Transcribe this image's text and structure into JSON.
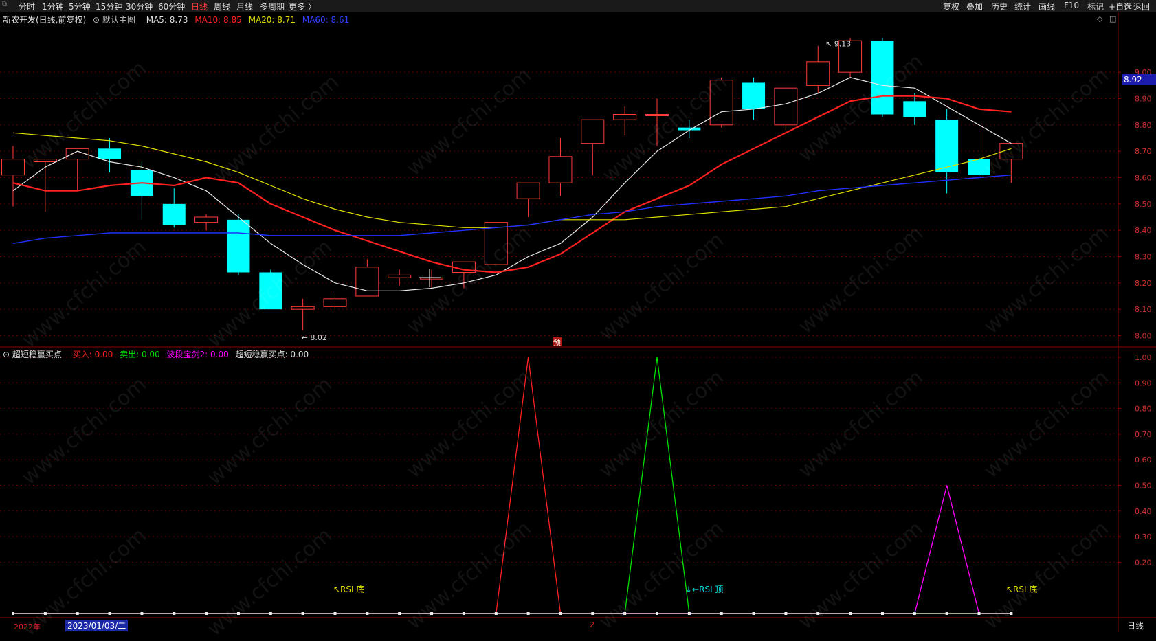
{
  "toolbar": {
    "left": [
      "分时",
      "1分钟",
      "5分钟",
      "15分钟",
      "30分钟",
      "60分钟",
      "日线",
      "周线",
      "月线",
      "多周期",
      "更多 〉"
    ],
    "active": "日线",
    "right": [
      "复权",
      "叠加",
      "历史",
      "统计",
      "画线",
      "F10",
      "标记",
      "+自选",
      "返回"
    ]
  },
  "main_legend": {
    "title": "新农开发(日线,前复权)",
    "template": "默认主图",
    "ma5": "MA5: 8.73",
    "ma10": "MA10: 8.85",
    "ma20": "MA20: 8.71",
    "ma60": "MA60: 8.61"
  },
  "sub_legend": {
    "name": "超短稳赢买点",
    "buy": "买入: 0.00",
    "sell": "卖出: 0.00",
    "wave": "波段宝剑2: 0.00",
    "point": "超短稳赢买点: 0.00"
  },
  "annotations": {
    "high": "9.13",
    "low": "8.02",
    "pre_marker": "预",
    "rsi_bottom_1": "↖RSI 底",
    "rsi_top": "↓←RSI 顶",
    "rsi_bottom_2": "↖RSI 底"
  },
  "current_price": "8.92",
  "bottom": {
    "year": "2022年",
    "date": "2023/01/03/二",
    "tick": "2",
    "period": "日线"
  },
  "watermark": "www.cfchi.com",
  "colors": {
    "up": "#ff3b3b",
    "down": "#00ffff",
    "ma5": "#e8e8e8",
    "ma10": "#ff2020",
    "ma20": "#e0e000",
    "ma60": "#2030ff",
    "buy": "#ff2020",
    "sell": "#00e000",
    "wave": "#ff00ff"
  },
  "chart_data": [
    {
      "type": "candlestick",
      "title": "新农开发(日线,前复权)",
      "ylim": [
        7.97,
        9.17
      ],
      "yticks": [
        "9.00",
        "8.90",
        "8.80",
        "8.70",
        "8.60",
        "8.50",
        "8.40",
        "8.30",
        "8.20",
        "8.10",
        "8.00"
      ],
      "candles": [
        {
          "o": 8.61,
          "h": 8.72,
          "l": 8.49,
          "c": 8.67
        },
        {
          "o": 8.66,
          "h": 8.67,
          "l": 8.47,
          "c": 8.67
        },
        {
          "o": 8.67,
          "h": 8.71,
          "l": 8.55,
          "c": 8.71
        },
        {
          "o": 8.71,
          "h": 8.75,
          "l": 8.62,
          "c": 8.67
        },
        {
          "o": 8.63,
          "h": 8.66,
          "l": 8.44,
          "c": 8.53
        },
        {
          "o": 8.5,
          "h": 8.56,
          "l": 8.41,
          "c": 8.42
        },
        {
          "o": 8.43,
          "h": 8.46,
          "l": 8.4,
          "c": 8.45
        },
        {
          "o": 8.44,
          "h": 8.46,
          "l": 8.23,
          "c": 8.24
        },
        {
          "o": 8.24,
          "h": 8.25,
          "l": 8.1,
          "c": 8.1
        },
        {
          "o": 8.1,
          "h": 8.14,
          "l": 8.02,
          "c": 8.11
        },
        {
          "o": 8.11,
          "h": 8.16,
          "l": 8.09,
          "c": 8.14
        },
        {
          "o": 8.15,
          "h": 8.29,
          "l": 8.15,
          "c": 8.26
        },
        {
          "o": 8.22,
          "h": 8.25,
          "l": 8.19,
          "c": 8.23
        },
        {
          "o": 8.22,
          "h": 8.25,
          "l": 8.18,
          "c": 8.22
        },
        {
          "o": 8.24,
          "h": 8.28,
          "l": 8.18,
          "c": 8.28
        },
        {
          "o": 8.27,
          "h": 8.43,
          "l": 8.27,
          "c": 8.43
        },
        {
          "o": 8.52,
          "h": 8.58,
          "l": 8.45,
          "c": 8.58
        },
        {
          "o": 8.58,
          "h": 8.75,
          "l": 8.53,
          "c": 8.68
        },
        {
          "o": 8.73,
          "h": 8.82,
          "l": 8.61,
          "c": 8.82
        },
        {
          "o": 8.82,
          "h": 8.87,
          "l": 8.76,
          "c": 8.84
        },
        {
          "o": 8.84,
          "h": 8.9,
          "l": 8.72,
          "c": 8.84
        },
        {
          "o": 8.79,
          "h": 8.82,
          "l": 8.75,
          "c": 8.78
        },
        {
          "o": 8.8,
          "h": 8.98,
          "l": 8.79,
          "c": 8.97
        },
        {
          "o": 8.96,
          "h": 8.98,
          "l": 8.82,
          "c": 8.86
        },
        {
          "o": 8.8,
          "h": 8.94,
          "l": 8.78,
          "c": 8.94
        },
        {
          "o": 8.95,
          "h": 9.1,
          "l": 8.92,
          "c": 9.04
        },
        {
          "o": 9.0,
          "h": 9.13,
          "l": 8.98,
          "c": 9.12
        },
        {
          "o": 9.12,
          "h": 9.13,
          "l": 8.83,
          "c": 8.84
        },
        {
          "o": 8.89,
          "h": 8.92,
          "l": 8.8,
          "c": 8.83
        },
        {
          "o": 8.82,
          "h": 8.86,
          "l": 8.54,
          "c": 8.62
        },
        {
          "o": 8.67,
          "h": 8.78,
          "l": 8.6,
          "c": 8.61
        },
        {
          "o": 8.67,
          "h": 8.73,
          "l": 8.58,
          "c": 8.73
        }
      ],
      "series": [
        {
          "name": "MA5",
          "values": [
            8.55,
            8.64,
            8.7,
            8.66,
            8.64,
            8.6,
            8.55,
            8.45,
            8.35,
            8.27,
            8.2,
            8.17,
            8.17,
            8.18,
            8.2,
            8.23,
            8.3,
            8.35,
            8.45,
            8.58,
            8.7,
            8.78,
            8.85,
            8.86,
            8.88,
            8.92,
            8.98,
            8.95,
            8.94,
            8.87,
            8.8,
            8.73
          ]
        },
        {
          "name": "MA10",
          "values": [
            8.58,
            8.55,
            8.55,
            8.57,
            8.58,
            8.57,
            8.6,
            8.58,
            8.5,
            8.45,
            8.4,
            8.36,
            8.32,
            8.28,
            8.25,
            8.24,
            8.26,
            8.31,
            8.39,
            8.47,
            8.52,
            8.57,
            8.65,
            8.71,
            8.77,
            8.83,
            8.89,
            8.91,
            8.91,
            8.9,
            8.86,
            8.85
          ]
        },
        {
          "name": "MA20",
          "values": [
            8.77,
            8.76,
            8.75,
            8.74,
            8.72,
            8.69,
            8.66,
            8.62,
            8.57,
            8.52,
            8.48,
            8.45,
            8.43,
            8.42,
            8.41,
            8.41,
            8.42,
            8.44,
            8.44,
            8.44,
            8.45,
            8.46,
            8.47,
            8.48,
            8.49,
            8.52,
            8.55,
            8.58,
            8.61,
            8.64,
            8.67,
            8.71
          ]
        },
        {
          "name": "MA60",
          "values": [
            8.35,
            8.37,
            8.38,
            8.39,
            8.39,
            8.39,
            8.39,
            8.39,
            8.38,
            8.38,
            8.38,
            8.38,
            8.38,
            8.39,
            8.4,
            8.41,
            8.42,
            8.44,
            8.46,
            8.47,
            8.49,
            8.5,
            8.51,
            8.52,
            8.53,
            8.55,
            8.56,
            8.57,
            8.58,
            8.59,
            8.6,
            8.61
          ]
        }
      ]
    },
    {
      "type": "line",
      "title": "超短稳赢买点",
      "ylim": [
        0,
        1.0
      ],
      "yticks": [
        "1.00",
        "0.90",
        "0.80",
        "0.70",
        "0.60",
        "0.50",
        "0.40",
        "0.30",
        "0.20"
      ],
      "series": [
        {
          "name": "买入",
          "values": [
            0,
            0,
            0,
            0,
            0,
            0,
            0,
            0,
            0,
            0,
            0,
            0,
            0,
            0,
            0,
            0,
            1,
            0,
            0,
            0,
            0,
            0,
            0,
            0,
            0,
            0,
            0,
            0,
            0,
            0,
            0,
            0
          ]
        },
        {
          "name": "卖出",
          "values": [
            0,
            0,
            0,
            0,
            0,
            0,
            0,
            0,
            0,
            0,
            0,
            0,
            0,
            0,
            0,
            0,
            0,
            0,
            0,
            0,
            1,
            0,
            0,
            0,
            0,
            0,
            0,
            0,
            0,
            0,
            0,
            0
          ]
        },
        {
          "name": "波段宝剑2",
          "values": [
            0,
            0,
            0,
            0,
            0,
            0,
            0,
            0,
            0,
            0,
            0,
            0,
            0,
            0,
            0,
            0,
            0,
            0,
            0,
            0,
            0,
            0,
            0,
            0,
            0,
            0,
            0,
            0,
            0,
            0.5,
            0,
            0
          ]
        },
        {
          "name": "超短稳赢买点",
          "values": [
            0,
            0,
            0,
            0,
            0,
            0,
            0,
            0,
            0,
            0,
            0,
            0,
            0,
            0,
            0,
            0,
            0,
            0,
            0,
            0,
            0,
            0,
            0,
            0,
            0,
            0,
            0,
            0,
            0,
            0,
            0,
            0
          ]
        }
      ]
    }
  ]
}
